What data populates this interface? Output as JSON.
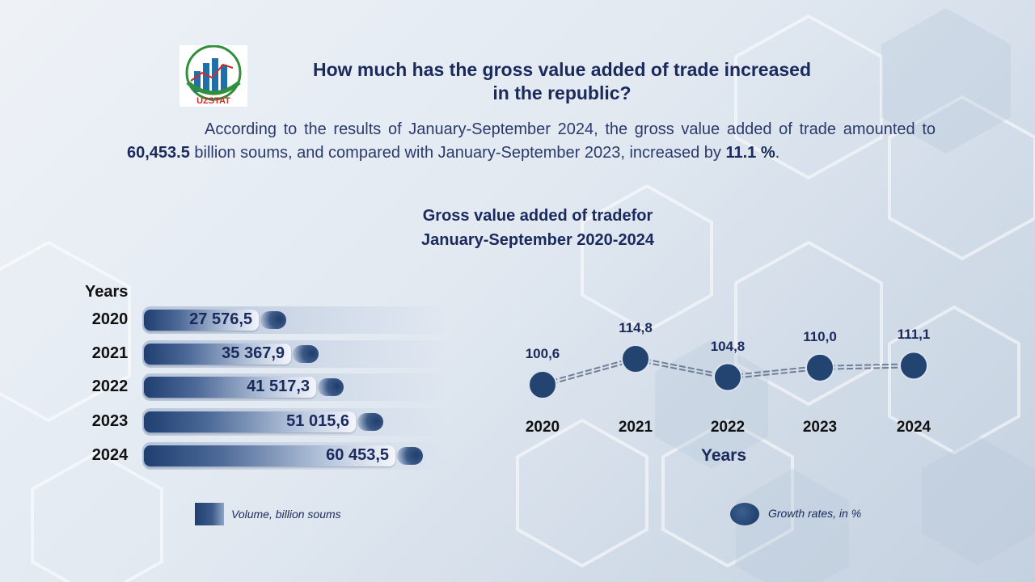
{
  "header": {
    "logo_text": "UZSTAT",
    "title_line1": "How much has the gross value added of trade increased",
    "title_line2": "in the republic?"
  },
  "paragraph": {
    "part1": "According to the results of January-September 2024, the gross value added of trade amounted to ",
    "amount": "60,453.5",
    "part2": " billion soums, and compared with January-September 2023, increased by ",
    "rate": "11.1 %",
    "part3": "."
  },
  "colors": {
    "title": "#1a2a5c",
    "bar_dark": "#1f3f71",
    "marker": "#1f3f6b"
  },
  "chart_data": [
    {
      "type": "bar",
      "title_line1": "Gross value added of tradefor",
      "title_line2": "January-September 2020-2024",
      "orientation": "horizontal",
      "category_label": "Years",
      "categories": [
        "2020",
        "2021",
        "2022",
        "2023",
        "2024"
      ],
      "values": [
        27576.5,
        35367.9,
        41517.3,
        51015.6,
        60453.5
      ],
      "value_labels": [
        "27 576,5",
        "35 367,9",
        "41 517,3",
        "51 015,6",
        "60 453,5"
      ],
      "legend": "Volume, billion soums"
    },
    {
      "type": "line",
      "xlabel": "Years",
      "x": [
        "2020",
        "2021",
        "2022",
        "2023",
        "2024"
      ],
      "values": [
        100.6,
        114.8,
        104.8,
        110.0,
        111.1
      ],
      "value_labels": [
        "100,6",
        "114,8",
        "104,8",
        "110,0",
        "111,1"
      ],
      "legend": "Growth rates, in %"
    }
  ]
}
